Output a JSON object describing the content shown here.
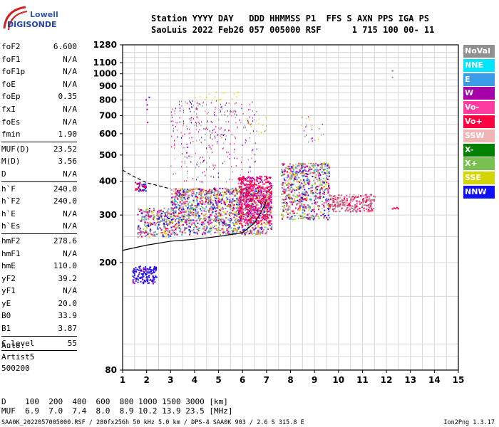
{
  "logo": {
    "lowell": "Lowell",
    "digisonde": "DIGISONDE"
  },
  "header": {
    "line1": "Station YYYY DAY   DDD HHMMSS P1  FFS S AXN PPS IGA PS",
    "line2": "SaoLuis 2022 Feb26 057 005000 RSF      1 715 100 00- 11"
  },
  "params": [
    {
      "name": "foF2",
      "value": "6.600",
      "sep": false
    },
    {
      "name": "foF1",
      "value": "N/A",
      "sep": false
    },
    {
      "name": "foF1p",
      "value": "N/A",
      "sep": false
    },
    {
      "name": "foE",
      "value": "N/A",
      "sep": false
    },
    {
      "name": "foEp",
      "value": "0.35",
      "sep": false
    },
    {
      "name": "fxI",
      "value": "N/A",
      "sep": false
    },
    {
      "name": "foEs",
      "value": "N/A",
      "sep": false
    },
    {
      "name": "fmin",
      "value": "1.90",
      "sep": true
    },
    {
      "name": "MUF(D)",
      "value": "23.52",
      "sep": false
    },
    {
      "name": "M(D)",
      "value": "3.56",
      "sep": false
    },
    {
      "name": "D",
      "value": "N/A",
      "sep": true
    },
    {
      "name": "h`F",
      "value": "240.0",
      "sep": false
    },
    {
      "name": "h`F2",
      "value": "240.0",
      "sep": false
    },
    {
      "name": "h`E",
      "value": "N/A",
      "sep": false
    },
    {
      "name": "h`Es",
      "value": "N/A",
      "sep": true
    },
    {
      "name": "hmF2",
      "value": "278.6",
      "sep": false
    },
    {
      "name": "hmF1",
      "value": "N/A",
      "sep": false
    },
    {
      "name": "hmE",
      "value": "110.0",
      "sep": false
    },
    {
      "name": "yF2",
      "value": "39.2",
      "sep": false
    },
    {
      "name": "yF1",
      "value": "N/A",
      "sep": false
    },
    {
      "name": "yE",
      "value": "20.0",
      "sep": false
    },
    {
      "name": "B0",
      "value": "33.9",
      "sep": false
    },
    {
      "name": "B1",
      "value": "3.87",
      "sep": true
    },
    {
      "name": "C-level",
      "value": "55",
      "sep": true
    }
  ],
  "auto": {
    "line1": "Auto:",
    "line2": "Artist5",
    "line3": "500200"
  },
  "legend": [
    {
      "label": "NoVal",
      "color": "#909090"
    },
    {
      "label": "NNE",
      "color": "#00e5ff"
    },
    {
      "label": "E",
      "color": "#3a9be8"
    },
    {
      "label": "W",
      "color": "#a800a8"
    },
    {
      "label": "Vo-",
      "color": "#ff3aa0"
    },
    {
      "label": "Vo+",
      "color": "#ff0040"
    },
    {
      "label": "SSW",
      "color": "#f0b4b4"
    },
    {
      "label": "X-",
      "color": "#008000"
    },
    {
      "label": "X+",
      "color": "#78c050"
    },
    {
      "label": "SSE",
      "color": "#d4d400"
    },
    {
      "label": "NNW",
      "color": "#1010ff"
    }
  ],
  "bottom": {
    "line1": "D    100  200  400  600  800 1000 1500 3000 [km]",
    "line2": "MUF  6.9  7.0  7.4  8.0  8.9 10.2 13.9 23.5 [MHz]"
  },
  "footer": {
    "text": "SAA0K_2022057005000.RSF / 280fx256h 50 kHz 5.0 km / DPS-4 SAA0K 903 / 2.6 S 315.8 E",
    "version": "Ion2Png 1.3.17"
  },
  "chart_data": {
    "type": "scatter",
    "title": "",
    "xlabel": "",
    "ylabel": "",
    "xlim": [
      1,
      15
    ],
    "ylim": [
      80,
      1280
    ],
    "x_ticks": [
      "1",
      "2",
      "3",
      "4",
      "5",
      "6",
      "7",
      "8",
      "9",
      "10",
      "11",
      "12",
      "13",
      "14",
      "15"
    ],
    "y_ticks": [
      "80",
      "200",
      "300",
      "400",
      "500",
      "600",
      "700",
      "800",
      "900",
      "1000",
      "1100",
      "1280"
    ],
    "y_scale": "log",
    "grid": true,
    "series": [
      {
        "name": "NNW",
        "points": [
          [
            1.6,
            180
          ],
          [
            1.8,
            175
          ],
          [
            2.0,
            185
          ],
          [
            2.2,
            178
          ],
          [
            2.4,
            172
          ],
          [
            1.4,
            165
          ],
          [
            1.7,
            192
          ]
        ]
      },
      {
        "name": "Vo+",
        "points": [
          [
            5.0,
            310
          ],
          [
            6.0,
            320
          ],
          [
            6.8,
            330
          ],
          [
            7.0,
            360
          ],
          [
            8.5,
            330
          ],
          [
            9.5,
            320
          ],
          [
            10.2,
            330
          ],
          [
            11.0,
            325
          ],
          [
            12.3,
            318
          ]
        ]
      },
      {
        "name": "W",
        "points": [
          [
            3.5,
            330
          ],
          [
            4.5,
            350
          ],
          [
            5.5,
            420
          ],
          [
            4.2,
            560
          ],
          [
            5.2,
            600
          ]
        ]
      },
      {
        "name": "SSE",
        "points": [
          [
            4.2,
            830
          ],
          [
            4.5,
            840
          ],
          [
            5.5,
            850
          ],
          [
            7.8,
            620
          ]
        ]
      },
      {
        "name": "X+",
        "points": [
          [
            8.0,
            360
          ],
          [
            8.5,
            340
          ],
          [
            9.0,
            350
          ],
          [
            6.5,
            380
          ]
        ]
      }
    ],
    "traces": [
      {
        "name": "O-trace",
        "points": [
          [
            1.0,
            222
          ],
          [
            2.0,
            232
          ],
          [
            3.0,
            240
          ],
          [
            4.0,
            244
          ],
          [
            5.0,
            250
          ],
          [
            6.0,
            258
          ],
          [
            6.5,
            280
          ],
          [
            6.8,
            310
          ],
          [
            7.0,
            340
          ]
        ]
      },
      {
        "name": "X-trace",
        "points": [
          [
            1.0,
            440
          ],
          [
            1.5,
            415
          ],
          [
            2.0,
            395
          ],
          [
            2.5,
            385
          ],
          [
            3.0,
            375
          ]
        ]
      }
    ]
  }
}
